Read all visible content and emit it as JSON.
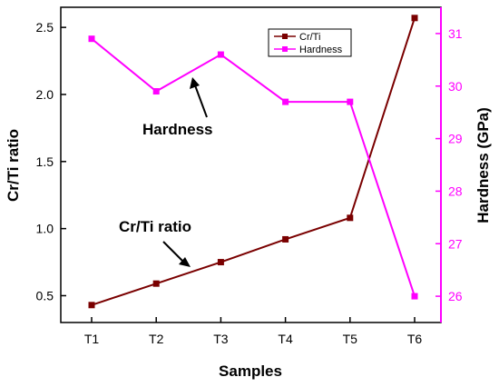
{
  "chart_data": {
    "type": "line",
    "categories": [
      "T1",
      "T2",
      "T3",
      "T4",
      "T5",
      "T6"
    ],
    "xlabel": "Samples",
    "ylabel_left": "Cr/Ti ratio",
    "ylabel_right": "Hardness (GPa)",
    "ylim_left": [
      0.3,
      2.65
    ],
    "ylim_right": [
      25.5,
      31.5
    ],
    "yticks_left": [
      "0.5",
      "1.0",
      "1.5",
      "2.0",
      "2.5"
    ],
    "yticks_right": [
      "26",
      "27",
      "28",
      "29",
      "30",
      "31"
    ],
    "series": [
      {
        "name": "Cr/Ti",
        "axis": "left",
        "color": "#7a0000",
        "values": [
          0.43,
          0.59,
          0.75,
          0.92,
          1.08,
          2.57
        ]
      },
      {
        "name": "Hardness",
        "axis": "right",
        "color": "#ff00ff",
        "values": [
          30.9,
          29.9,
          30.6,
          29.7,
          29.7,
          26.0
        ]
      }
    ],
    "legend_position": "top-right",
    "annotations": [
      {
        "text": "Hardness"
      },
      {
        "text": "Cr/Ti ratio"
      }
    ],
    "right_axis_color": "#ff00ff"
  }
}
